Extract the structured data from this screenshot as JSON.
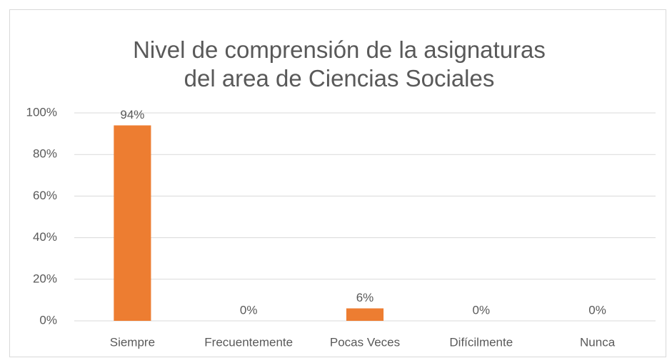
{
  "chart_data": {
    "type": "bar",
    "title": "Nivel de comprensión de la asignaturas del area de Ciencias Sociales",
    "categories": [
      "Siempre",
      "Frecuentemente",
      "Pocas Veces",
      "Difícilmente",
      "Nunca"
    ],
    "values": [
      94,
      0,
      6,
      0,
      0
    ],
    "value_labels": [
      "94%",
      "0%",
      "6%",
      "0%",
      "0%"
    ],
    "color": "#ed7d31",
    "ylim": [
      0,
      100
    ],
    "yticks": [
      {
        "value": 0,
        "label": "0%"
      },
      {
        "value": 20,
        "label": "20%"
      },
      {
        "value": 40,
        "label": "40%"
      },
      {
        "value": 60,
        "label": "60%"
      },
      {
        "value": 80,
        "label": "80%"
      },
      {
        "value": 100,
        "label": "100%"
      }
    ],
    "grid": true
  }
}
